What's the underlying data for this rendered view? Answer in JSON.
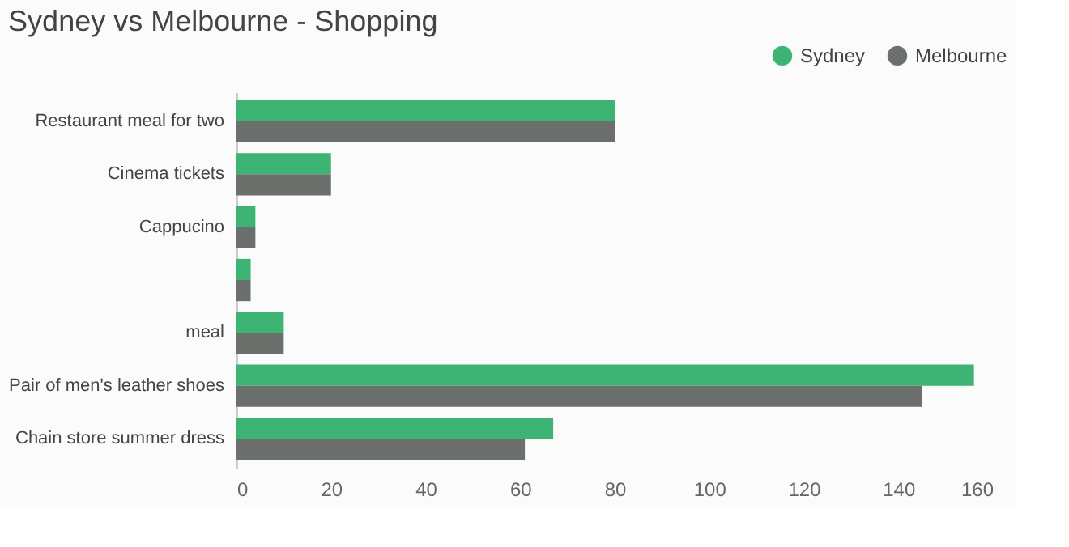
{
  "chart_data": {
    "type": "bar",
    "orientation": "horizontal",
    "title": "Sydney vs Melbourne - Shopping",
    "categories": [
      "Restaurant meal for two",
      "Cinema tickets",
      "Cappucino",
      null,
      "meal",
      "Pair of men's leather shoes",
      "Chain store summer dress"
    ],
    "series": [
      {
        "name": "Sydney",
        "color": "#3db374",
        "values": [
          80,
          20,
          4,
          3,
          10,
          156,
          67
        ]
      },
      {
        "name": "Melbourne",
        "color": "#6b706d",
        "values": [
          80,
          20,
          4,
          3,
          10,
          145,
          61
        ]
      }
    ],
    "xlim": [
      0,
      160
    ],
    "xticks": [
      0,
      20,
      40,
      60,
      80,
      100,
      120,
      140,
      160
    ],
    "grid": false,
    "legend": "top right"
  }
}
